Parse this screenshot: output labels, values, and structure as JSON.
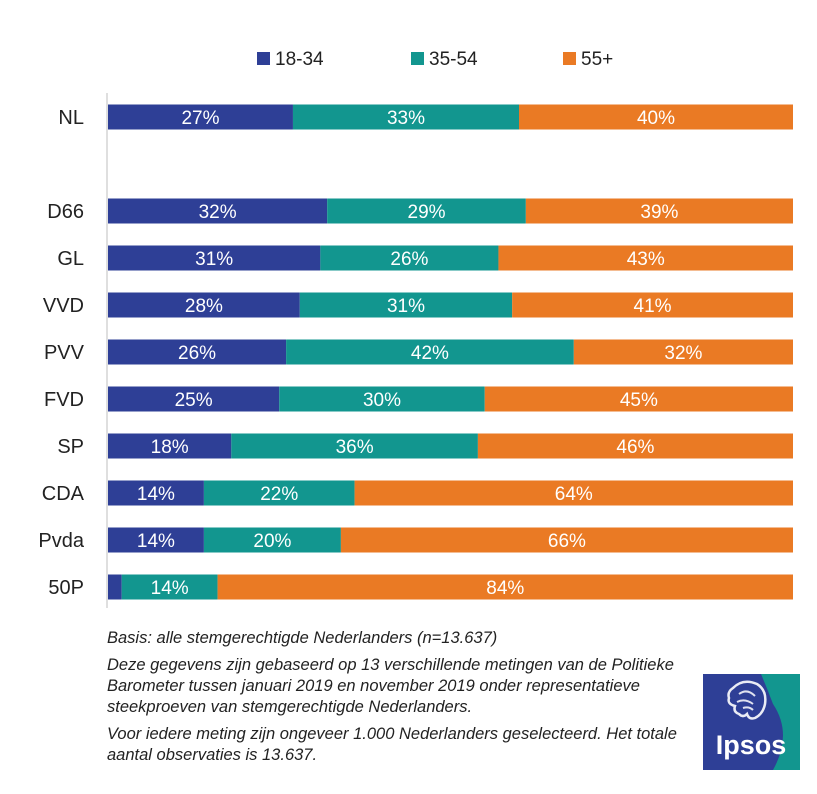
{
  "chart_data": {
    "type": "bar",
    "orientation": "horizontal",
    "stacked": true,
    "categories": [
      "NL",
      "",
      "D66",
      "GL",
      "VVD",
      "PVV",
      "FVD",
      "SP",
      "CDA",
      "Pvda",
      "50P"
    ],
    "series": [
      {
        "name": "18-34",
        "color": "#2e3f96",
        "values": [
          27,
          null,
          32,
          31,
          28,
          26,
          25,
          18,
          14,
          14,
          2
        ],
        "labels": [
          "27%",
          "",
          "32%",
          "31%",
          "28%",
          "26%",
          "25%",
          "18%",
          "14%",
          "14%",
          ""
        ]
      },
      {
        "name": "35-54",
        "color": "#12968f",
        "values": [
          33,
          null,
          29,
          26,
          31,
          42,
          30,
          36,
          22,
          20,
          14
        ],
        "labels": [
          "33%",
          "",
          "29%",
          "26%",
          "31%",
          "42%",
          "30%",
          "36%",
          "22%",
          "20%",
          "14%"
        ]
      },
      {
        "name": "55+",
        "color": "#ea7a24",
        "values": [
          40,
          null,
          39,
          43,
          41,
          32,
          45,
          46,
          64,
          66,
          84
        ],
        "labels": [
          "40%",
          "",
          "39%",
          "43%",
          "41%",
          "32%",
          "45%",
          "46%",
          "64%",
          "66%",
          "84%"
        ]
      }
    ],
    "xlim": [
      0,
      100
    ],
    "legend": "top",
    "grid": false
  },
  "footnotes": {
    "basis": "Basis: alle stemgerechtigde Nederlanders (n=13.637)",
    "method": "Deze gegevens zijn gebaseerd op 13 verschillende metingen van de Politieke Barometer tussen januari 2019 en november 2019 onder representatieve steekproeven van stemgerechtigde Nederlanders.",
    "sample": "Voor iedere meting zijn ongeveer 1.000 Nederlanders geselecteerd. Het totale aantal observaties is 13.637."
  },
  "logo": {
    "text": "Ipsos",
    "color_blue": "#2e3f96",
    "color_teal": "#12968f"
  }
}
